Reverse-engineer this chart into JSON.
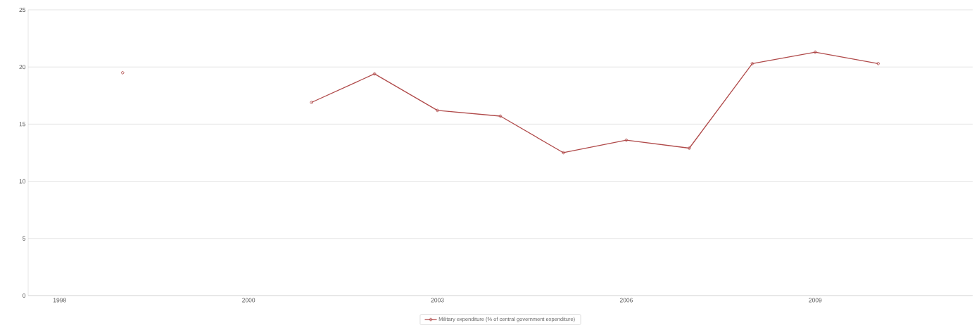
{
  "chart_data": {
    "type": "line",
    "categories": [
      "1998",
      null,
      null,
      "2000",
      null,
      null,
      "2003",
      null,
      null,
      "2006",
      null,
      null,
      "2009",
      null,
      null
    ],
    "series": [
      {
        "name": "Military expenditure (% of central government expenditure)",
        "color": "#b04a4a",
        "values": [
          null,
          19.5,
          null,
          null,
          16.9,
          19.4,
          16.2,
          15.7,
          12.5,
          13.6,
          12.9,
          20.3,
          21.3,
          20.3,
          null
        ]
      }
    ],
    "ylim": [
      0,
      25
    ],
    "yticks": [
      0,
      5,
      10,
      15,
      20,
      25
    ],
    "grid": "y",
    "legend": "bottom",
    "marker": "circle",
    "line_style": "solid"
  }
}
